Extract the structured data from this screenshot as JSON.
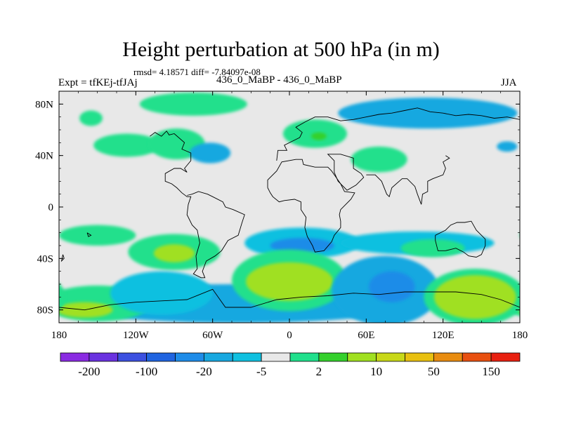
{
  "title": "Height perturbation at 500 hPa (in m)",
  "stats": "rmsd= 4.18571 diff= -7.84097e-08",
  "left_label": "Expt = tfKEj-tfJAj",
  "center_label": "436_0_MaBP - 436_0_MaBP",
  "right_label": "JJA",
  "chart_data": {
    "type": "heatmap",
    "x_ticks": [
      "180",
      "120W",
      "60W",
      "0",
      "60E",
      "120E",
      "180"
    ],
    "y_ticks": [
      "80N",
      "40N",
      "0",
      "40S",
      "80S"
    ],
    "xlim": [
      -180,
      180
    ],
    "ylim": [
      -90,
      90
    ],
    "colorbar": {
      "labels": [
        "-200",
        "-100",
        "-20",
        "-5",
        "2",
        "10",
        "50",
        "150"
      ],
      "colors": [
        "#8a2be2",
        "#6a32e0",
        "#3c50e0",
        "#2064e0",
        "#1e8ce8",
        "#18a8e0",
        "#10c0e0",
        "#e8e8e8",
        "#20e08c",
        "#34d02c",
        "#a0e020",
        "#c8d818",
        "#e8c010",
        "#e88c10",
        "#e85010",
        "#e82010"
      ]
    },
    "blobs": [
      {
        "lon": -75,
        "lat": 80,
        "rx": 42,
        "ry": 9,
        "level": 8
      },
      {
        "lon": -155,
        "lat": 69,
        "rx": 9,
        "ry": 6,
        "level": 8
      },
      {
        "lon": -127,
        "lat": 48,
        "rx": 26,
        "ry": 9,
        "level": 8
      },
      {
        "lon": -88,
        "lat": 49,
        "rx": 22,
        "ry": 12,
        "level": 8
      },
      {
        "lon": -62,
        "lat": 42,
        "rx": 16,
        "ry": 8,
        "level": 5
      },
      {
        "lon": 20,
        "lat": 57,
        "rx": 25,
        "ry": 11,
        "level": 8
      },
      {
        "lon": 23,
        "lat": 55,
        "rx": 6,
        "ry": 3,
        "level": 9
      },
      {
        "lon": 70,
        "lat": 37,
        "rx": 22,
        "ry": 10,
        "level": 8
      },
      {
        "lon": 108,
        "lat": 73,
        "rx": 70,
        "ry": 12,
        "level": 5
      },
      {
        "lon": 170,
        "lat": 47,
        "rx": 8,
        "ry": 4,
        "level": 5
      },
      {
        "lon": -150,
        "lat": -22,
        "rx": 30,
        "ry": 8,
        "level": 8
      },
      {
        "lon": -90,
        "lat": -35,
        "rx": 36,
        "ry": 14,
        "level": 8
      },
      {
        "lon": -90,
        "lat": -36,
        "rx": 16,
        "ry": 7,
        "level": 10
      },
      {
        "lon": 10,
        "lat": -28,
        "rx": 45,
        "ry": 12,
        "level": 6
      },
      {
        "lon": 10,
        "lat": -30,
        "rx": 25,
        "ry": 6,
        "level": 4
      },
      {
        "lon": 100,
        "lat": -28,
        "rx": 60,
        "ry": 9,
        "level": 6
      },
      {
        "lon": 112,
        "lat": -32,
        "rx": 25,
        "ry": 7,
        "level": 8
      },
      {
        "lon": -40,
        "lat": -75,
        "rx": 140,
        "ry": 15,
        "level": 5
      },
      {
        "lon": -150,
        "lat": -75,
        "rx": 42,
        "ry": 14,
        "level": 8
      },
      {
        "lon": -160,
        "lat": -80,
        "rx": 22,
        "ry": 6,
        "level": 10
      },
      {
        "lon": -100,
        "lat": -67,
        "rx": 40,
        "ry": 17,
        "level": 6
      },
      {
        "lon": 0,
        "lat": -57,
        "rx": 45,
        "ry": 24,
        "level": 8
      },
      {
        "lon": 0,
        "lat": -58,
        "rx": 34,
        "ry": 15,
        "level": 10
      },
      {
        "lon": 75,
        "lat": -65,
        "rx": 42,
        "ry": 27,
        "level": 5
      },
      {
        "lon": 80,
        "lat": -62,
        "rx": 18,
        "ry": 12,
        "level": 4
      },
      {
        "lon": 145,
        "lat": -70,
        "rx": 40,
        "ry": 22,
        "level": 8
      },
      {
        "lon": 145,
        "lat": -70,
        "rx": 32,
        "ry": 17,
        "level": 10
      }
    ],
    "coastline": [
      [
        [
          -109,
          55
        ],
        [
          -105,
          58
        ],
        [
          -100,
          55
        ],
        [
          -96,
          59
        ],
        [
          -94,
          56
        ],
        [
          -90,
          57
        ],
        [
          -82,
          50
        ],
        [
          -84,
          45
        ],
        [
          -77,
          42
        ],
        [
          -77,
          36
        ],
        [
          -82,
          30
        ],
        [
          -80,
          27
        ],
        [
          -85,
          30
        ],
        [
          -90,
          30
        ],
        [
          -97,
          26
        ],
        [
          -97,
          20
        ],
        [
          -92,
          18
        ],
        [
          -88,
          15
        ],
        [
          -84,
          11
        ],
        [
          -80,
          8
        ],
        [
          -77,
          8
        ],
        [
          -79,
          2
        ],
        [
          -80,
          -6
        ],
        [
          -76,
          -14
        ],
        [
          -72,
          -18
        ],
        [
          -70,
          -28
        ],
        [
          -73,
          -38
        ],
        [
          -72,
          -48
        ],
        [
          -75,
          -52
        ],
        [
          -69,
          -55
        ],
        [
          -66,
          -55
        ],
        [
          -68,
          -50
        ],
        [
          -65,
          -42
        ],
        [
          -58,
          -38
        ],
        [
          -53,
          -34
        ],
        [
          -48,
          -26
        ],
        [
          -40,
          -22
        ],
        [
          -37,
          -12
        ],
        [
          -35,
          -6
        ],
        [
          -44,
          -2
        ],
        [
          -50,
          0
        ],
        [
          -52,
          4
        ],
        [
          -60,
          8
        ],
        [
          -64,
          10
        ],
        [
          -71,
          12
        ],
        [
          -76,
          10
        ],
        [
          -80,
          9
        ]
      ],
      [
        [
          -17,
          15
        ],
        [
          -17,
          21
        ],
        [
          -10,
          28
        ],
        [
          -6,
          35
        ],
        [
          5,
          37
        ],
        [
          10,
          37
        ],
        [
          11,
          33
        ],
        [
          20,
          31
        ],
        [
          30,
          31
        ],
        [
          33,
          28
        ],
        [
          40,
          18
        ],
        [
          43,
          12
        ],
        [
          51,
          11
        ],
        [
          48,
          6
        ],
        [
          40,
          -2
        ],
        [
          39,
          -6
        ],
        [
          40,
          -11
        ],
        [
          40,
          -16
        ],
        [
          35,
          -22
        ],
        [
          33,
          -27
        ],
        [
          27,
          -34
        ],
        [
          20,
          -35
        ],
        [
          18,
          -30
        ],
        [
          14,
          -23
        ],
        [
          12,
          -16
        ],
        [
          13,
          -8
        ],
        [
          9,
          -2
        ],
        [
          9,
          4
        ],
        [
          4,
          6
        ],
        [
          -4,
          5
        ],
        [
          -8,
          4
        ],
        [
          -13,
          8
        ],
        [
          -15,
          11
        ],
        [
          -17,
          15
        ]
      ],
      [
        [
          -10,
          36
        ],
        [
          -9,
          44
        ],
        [
          -2,
          44
        ],
        [
          -4,
          48
        ],
        [
          2,
          51
        ],
        [
          8,
          54
        ],
        [
          10,
          58
        ],
        [
          5,
          62
        ],
        [
          12,
          66
        ],
        [
          20,
          70
        ],
        [
          30,
          70
        ],
        [
          40,
          67
        ],
        [
          50,
          68
        ],
        [
          60,
          70
        ],
        [
          70,
          72
        ],
        [
          80,
          73
        ],
        [
          90,
          75
        ],
        [
          100,
          77
        ],
        [
          110,
          74
        ],
        [
          120,
          73
        ],
        [
          130,
          71
        ],
        [
          140,
          72
        ],
        [
          150,
          71
        ],
        [
          160,
          69
        ],
        [
          170,
          70
        ],
        [
          180,
          68
        ]
      ],
      [
        [
          35,
          30
        ],
        [
          35,
          36
        ],
        [
          30,
          41
        ],
        [
          40,
          41
        ],
        [
          50,
          38
        ],
        [
          50,
          30
        ],
        [
          56,
          26
        ],
        [
          58,
          23
        ],
        [
          52,
          17
        ],
        [
          45,
          13
        ],
        [
          43,
          15
        ],
        [
          38,
          20
        ],
        [
          35,
          27
        ],
        [
          35,
          30
        ]
      ],
      [
        [
          60,
          25
        ],
        [
          67,
          25
        ],
        [
          72,
          20
        ],
        [
          76,
          10
        ],
        [
          78,
          8
        ],
        [
          80,
          15
        ],
        [
          88,
          22
        ],
        [
          92,
          22
        ],
        [
          98,
          16
        ],
        [
          100,
          10
        ],
        [
          103,
          2
        ],
        [
          104,
          10
        ],
        [
          108,
          12
        ],
        [
          108,
          20
        ],
        [
          112,
          22
        ],
        [
          120,
          25
        ],
        [
          122,
          30
        ],
        [
          120,
          35
        ],
        [
          125,
          38
        ],
        [
          122,
          40
        ]
      ],
      [
        [
          114,
          -22
        ],
        [
          114,
          -26
        ],
        [
          116,
          -34
        ],
        [
          122,
          -34
        ],
        [
          130,
          -32
        ],
        [
          136,
          -35
        ],
        [
          140,
          -38
        ],
        [
          146,
          -39
        ],
        [
          150,
          -37
        ],
        [
          153,
          -30
        ],
        [
          153,
          -25
        ],
        [
          146,
          -18
        ],
        [
          142,
          -11
        ],
        [
          137,
          -12
        ],
        [
          131,
          -12
        ],
        [
          126,
          -14
        ],
        [
          122,
          -18
        ],
        [
          114,
          -22
        ]
      ],
      [
        [
          -180,
          -78
        ],
        [
          -160,
          -80
        ],
        [
          -140,
          -76
        ],
        [
          -120,
          -74
        ],
        [
          -100,
          -73
        ],
        [
          -80,
          -72
        ],
        [
          -60,
          -64
        ],
        [
          -50,
          -78
        ],
        [
          -30,
          -78
        ],
        [
          -10,
          -72
        ],
        [
          10,
          -70
        ],
        [
          30,
          -69
        ],
        [
          50,
          -67
        ],
        [
          70,
          -68
        ],
        [
          90,
          -66
        ],
        [
          110,
          -66
        ],
        [
          130,
          -66
        ],
        [
          150,
          -68
        ],
        [
          165,
          -72
        ],
        [
          180,
          -78
        ]
      ],
      [
        [
          -177,
          -37
        ],
        [
          -176,
          -40
        ],
        [
          -178,
          -42
        ],
        [
          -177,
          -37
        ]
      ],
      [
        [
          -158,
          -20
        ],
        [
          -157,
          -23
        ],
        [
          -155,
          -22
        ],
        [
          -158,
          -20
        ]
      ]
    ]
  }
}
